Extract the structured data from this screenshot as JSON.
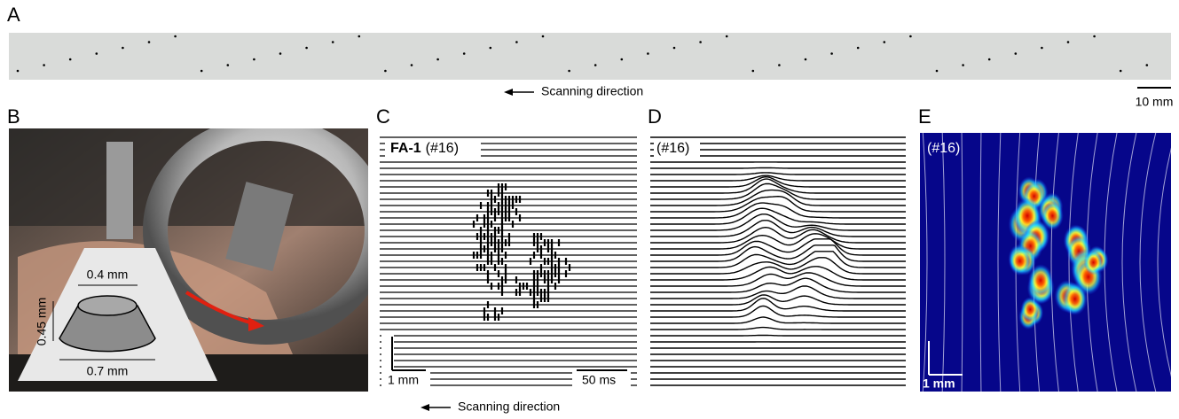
{
  "panels": {
    "A": {
      "label": "A",
      "scanning_direction": "Scanning direction",
      "scale_bar": "10 mm"
    },
    "B": {
      "label": "B",
      "top_width": "0.4 mm",
      "height": "0.45 mm",
      "bottom_width": "0.7 mm"
    },
    "C": {
      "label": "C",
      "unit": "FA-1",
      "id": "(#16)",
      "scale_x": "1 mm",
      "scale_t": "50 ms"
    },
    "D": {
      "label": "D",
      "id": "(#16)"
    },
    "E": {
      "label": "E",
      "id": "(#16)",
      "scale_bar": "1 mm"
    }
  },
  "bottom_caption": "Scanning direction"
}
